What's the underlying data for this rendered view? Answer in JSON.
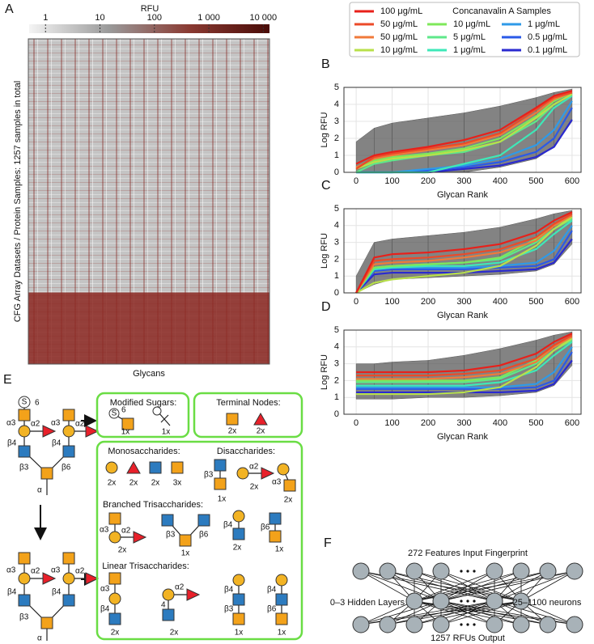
{
  "panel_a": {
    "label": "A",
    "colorbar": {
      "title": "RFU",
      "log": true,
      "xlim": [
        0.5,
        13000
      ],
      "ticks": [
        1,
        10,
        100,
        {
          "value": 1000,
          "label": "1 000"
        },
        {
          "value": 10000,
          "label": "10 000"
        }
      ],
      "colormap": [
        "#f4f4f4",
        "#9a9a9a",
        "#8a3a32",
        "#4a0c08"
      ]
    },
    "y_label": "CFG Array Datasets / Protein Samples: 1257 samples in total",
    "x_label": "Glycans"
  },
  "legend": {
    "title": "Concanavalin A Samples",
    "series": [
      {
        "name": "100 μg/mL",
        "color": "#e8201a"
      },
      {
        "name": "50 μg/mL",
        "color": "#ec4a28"
      },
      {
        "name": "50 μg/mL",
        "color": "#f07a3a"
      },
      {
        "name": "10 μg/mL",
        "color": "#b8e04a"
      },
      {
        "name": "10 μg/mL",
        "color": "#7ee85a"
      },
      {
        "name": "5 μg/mL",
        "color": "#5ee88a"
      },
      {
        "name": "1 μg/mL",
        "color": "#3ee8b8"
      },
      {
        "name": "1 μg/mL",
        "color": "#2e9ae8"
      },
      {
        "name": "0.5 μg/mL",
        "color": "#2a5ae8"
      },
      {
        "name": "0.1 μg/mL",
        "color": "#2a2ad0"
      }
    ]
  },
  "chart_data": [
    {
      "type": "line",
      "label": "B",
      "x_label": "Glycan Rank",
      "y_label": "Log RFU",
      "xlim": [
        -34,
        625
      ],
      "ylim": [
        0,
        5
      ],
      "xticks": [
        0,
        100,
        200,
        300,
        400,
        500,
        600
      ],
      "yticks": [
        0,
        1,
        2,
        3,
        4,
        5
      ],
      "grid": true,
      "x": [
        0,
        50,
        100,
        200,
        300,
        400,
        500,
        550,
        600
      ],
      "band": {
        "color": "#5a5a5a",
        "lower": [
          0,
          0,
          0,
          0,
          0,
          0.3,
          0.8,
          1.5,
          3.0
        ],
        "upper": [
          1.8,
          2.6,
          2.9,
          3.2,
          3.5,
          3.9,
          4.4,
          4.7,
          4.9
        ]
      },
      "series": [
        {
          "values": [
            0.5,
            1.0,
            1.2,
            1.5,
            1.9,
            2.5,
            3.8,
            4.5,
            4.8
          ]
        },
        {
          "values": [
            0.2,
            0.9,
            1.1,
            1.4,
            1.7,
            2.3,
            3.7,
            4.4,
            4.7
          ]
        },
        {
          "values": [
            0.3,
            0.8,
            1.0,
            1.3,
            1.6,
            2.2,
            3.5,
            4.3,
            4.7
          ]
        },
        {
          "values": [
            0.2,
            0.6,
            0.8,
            1.0,
            1.3,
            1.8,
            3.2,
            4.0,
            4.6
          ]
        },
        {
          "values": [
            0.3,
            0.7,
            0.9,
            1.1,
            1.4,
            2.0,
            3.3,
            4.2,
            4.7
          ]
        },
        {
          "values": [
            0,
            0.5,
            0.7,
            1.0,
            1.2,
            1.8,
            3.0,
            4.0,
            4.6
          ]
        },
        {
          "values": [
            0,
            0,
            0,
            0,
            0.5,
            1.0,
            2.5,
            3.8,
            4.5
          ]
        },
        {
          "values": [
            0,
            0,
            0,
            0.2,
            0.4,
            0.8,
            1.6,
            2.5,
            4.2
          ]
        },
        {
          "values": [
            0,
            0,
            0,
            0.1,
            0.3,
            0.6,
            1.2,
            2.0,
            3.8
          ]
        },
        {
          "values": [
            0,
            0,
            0,
            0,
            0.2,
            0.4,
            0.9,
            1.5,
            3.1
          ]
        }
      ]
    },
    {
      "type": "line",
      "label": "C",
      "x_label": "Glycan Rank",
      "y_label": "Log RFU",
      "xlim": [
        -34,
        625
      ],
      "ylim": [
        0,
        5
      ],
      "xticks": [
        0,
        100,
        200,
        300,
        400,
        500,
        600
      ],
      "yticks": [
        0,
        1,
        2,
        3,
        4,
        5
      ],
      "grid": true,
      "x": [
        0,
        50,
        100,
        200,
        300,
        400,
        500,
        550,
        600
      ],
      "band": {
        "color": "#5a5a5a",
        "lower": [
          0,
          0.5,
          0.8,
          0.9,
          1.0,
          1.1,
          1.3,
          1.7,
          2.9
        ],
        "upper": [
          1.0,
          3.0,
          3.2,
          3.4,
          3.6,
          3.9,
          4.4,
          4.7,
          4.9
        ]
      },
      "series": [
        {
          "values": [
            0,
            2.1,
            2.3,
            2.4,
            2.6,
            2.9,
            3.6,
            4.3,
            4.8
          ]
        },
        {
          "values": [
            0,
            1.9,
            2.0,
            2.1,
            2.3,
            2.6,
            3.3,
            4.1,
            4.7
          ]
        },
        {
          "values": [
            0,
            1.7,
            1.8,
            1.9,
            2.1,
            2.4,
            3.1,
            4.0,
            4.6
          ]
        },
        {
          "values": [
            0,
            0.6,
            0.8,
            1.0,
            1.2,
            1.6,
            2.8,
            3.8,
            4.5
          ]
        },
        {
          "values": [
            0,
            1.5,
            1.6,
            1.7,
            1.8,
            2.1,
            3.2,
            4.0,
            4.5
          ]
        },
        {
          "values": [
            0,
            1.5,
            1.6,
            1.7,
            1.8,
            2.0,
            3.0,
            3.8,
            4.4
          ]
        },
        {
          "values": [
            0,
            1.4,
            1.5,
            1.6,
            1.6,
            1.8,
            2.6,
            3.5,
            4.3
          ]
        },
        {
          "values": [
            0,
            1.4,
            1.5,
            1.5,
            1.5,
            1.6,
            1.8,
            2.5,
            4.0
          ]
        },
        {
          "values": [
            0,
            1.3,
            1.4,
            1.4,
            1.4,
            1.5,
            1.6,
            2.0,
            3.7
          ]
        },
        {
          "values": [
            0,
            1.1,
            1.2,
            1.2,
            1.2,
            1.3,
            1.4,
            1.8,
            3.2
          ]
        }
      ]
    },
    {
      "type": "line",
      "label": "D",
      "x_label": "Glycan Rank",
      "y_label": "Log RFU",
      "xlim": [
        -34,
        625
      ],
      "ylim": [
        0,
        5
      ],
      "xticks": [
        0,
        100,
        200,
        300,
        400,
        500,
        600
      ],
      "yticks": [
        0,
        1,
        2,
        3,
        4,
        5
      ],
      "grid": true,
      "x": [
        0,
        50,
        100,
        200,
        300,
        400,
        500,
        550,
        600
      ],
      "band": {
        "color": "#5a5a5a",
        "lower": [
          0.9,
          0.9,
          0.9,
          1.0,
          1.0,
          1.1,
          1.3,
          1.7,
          2.9
        ],
        "upper": [
          3.0,
          3.0,
          3.1,
          3.2,
          3.5,
          3.9,
          4.4,
          4.7,
          4.9
        ]
      },
      "series": [
        {
          "values": [
            2.5,
            2.5,
            2.5,
            2.5,
            2.6,
            2.9,
            3.6,
            4.3,
            4.8
          ]
        },
        {
          "values": [
            2.3,
            2.3,
            2.3,
            2.3,
            2.4,
            2.6,
            3.3,
            4.1,
            4.7
          ]
        },
        {
          "values": [
            2.1,
            2.1,
            2.1,
            2.1,
            2.2,
            2.4,
            3.1,
            4.0,
            4.6
          ]
        },
        {
          "values": [
            1.2,
            1.2,
            1.2,
            1.2,
            1.3,
            1.6,
            2.8,
            3.8,
            4.5
          ]
        },
        {
          "values": [
            2.0,
            2.0,
            2.0,
            2.0,
            2.0,
            2.2,
            3.2,
            4.0,
            4.5
          ]
        },
        {
          "values": [
            1.9,
            1.9,
            1.9,
            1.9,
            1.9,
            2.1,
            3.0,
            3.8,
            4.4
          ]
        },
        {
          "values": [
            1.7,
            1.7,
            1.7,
            1.7,
            1.7,
            1.9,
            2.6,
            3.5,
            4.3
          ]
        },
        {
          "values": [
            1.6,
            1.6,
            1.6,
            1.6,
            1.6,
            1.6,
            1.8,
            2.5,
            4.0
          ]
        },
        {
          "values": [
            1.5,
            1.5,
            1.5,
            1.5,
            1.5,
            1.5,
            1.6,
            2.0,
            3.7
          ]
        },
        {
          "values": [
            1.3,
            1.3,
            1.3,
            1.3,
            1.3,
            1.3,
            1.4,
            1.8,
            3.2
          ]
        }
      ]
    }
  ],
  "panel_e": {
    "label": "E",
    "glycan_top": {
      "sulfate": "S",
      "sulfate_position": "6",
      "links": [
        "α3",
        "α2",
        "α3",
        "α2",
        "β4",
        "β4",
        "β3",
        "β6",
        "α"
      ]
    },
    "glycan_bottom": {
      "links": [
        "α3",
        "α2",
        "α3",
        "α2",
        "β4",
        "β4",
        "β3",
        "α"
      ]
    },
    "modified_sugars": {
      "title": "Modified Sugars:",
      "sulfate": "S",
      "sulfate_position": "6",
      "counts": [
        "1x",
        "1x"
      ]
    },
    "terminal_nodes": {
      "title": "Terminal Nodes:",
      "counts": [
        "2x",
        "2x"
      ]
    },
    "monosaccharides": {
      "title": "Monosaccharides:",
      "counts": [
        "2x",
        "2x",
        "2x",
        "3x"
      ]
    },
    "disaccharides": {
      "title": "Disaccharides:",
      "links": [
        "β3",
        "α2",
        "α3"
      ],
      "counts": [
        "1x",
        "2x",
        "2x"
      ]
    },
    "branched": {
      "title": "Branched Trisaccharides:",
      "links": [
        "α3",
        "α2",
        "β3",
        "β6",
        "β4",
        "β6"
      ],
      "counts": [
        "2x",
        "1x",
        "2x",
        "1x"
      ]
    },
    "linear": {
      "title": "Linear Trisaccharides:",
      "links": [
        "α3",
        "β4",
        "α2",
        "4",
        "β4",
        "β3",
        "β4",
        "β6"
      ],
      "counts": [
        "2x",
        "2x",
        "1x",
        "1x"
      ]
    }
  },
  "panel_f": {
    "label": "F",
    "input": "272 Features Input Fingerprint",
    "hidden": "0–3 Hidden Layers",
    "neurons": "25–1100 neurons",
    "output": "1257 RFUs Output"
  }
}
